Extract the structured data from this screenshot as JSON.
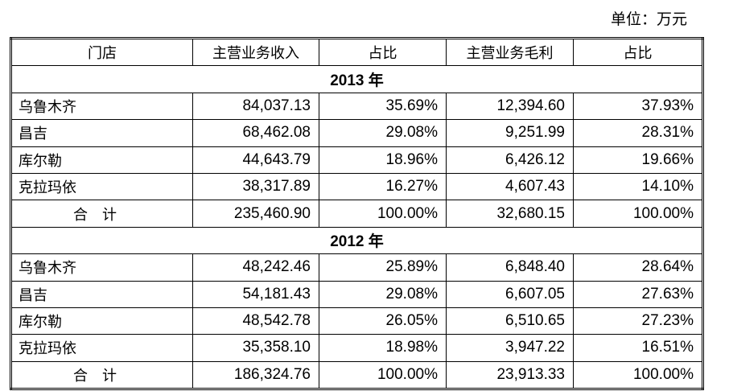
{
  "unit_label": "单位：万元",
  "headers": [
    "门店",
    "主营业务收入",
    "占比",
    "主营业务毛利",
    "占比"
  ],
  "sections": [
    {
      "year": "2013 年",
      "rows": [
        [
          "乌鲁木齐",
          "84,037.13",
          "35.69%",
          "12,394.60",
          "37.93%"
        ],
        [
          "昌吉",
          "68,462.08",
          "29.08%",
          "9,251.99",
          "28.31%"
        ],
        [
          "库尔勒",
          "44,643.79",
          "18.96%",
          "6,426.12",
          "19.66%"
        ],
        [
          "克拉玛依",
          "38,317.89",
          "16.27%",
          "4,607.43",
          "14.10%"
        ]
      ],
      "total": [
        "合计",
        "235,460.90",
        "100.00%",
        "32,680.15",
        "100.00%"
      ]
    },
    {
      "year": "2012 年",
      "rows": [
        [
          "乌鲁木齐",
          "48,242.46",
          "25.89%",
          "6,848.40",
          "28.64%"
        ],
        [
          "昌吉",
          "54,181.43",
          "29.08%",
          "6,607.05",
          "27.63%"
        ],
        [
          "库尔勒",
          "48,542.78",
          "26.05%",
          "6,510.65",
          "27.23%"
        ],
        [
          "克拉玛依",
          "35,358.10",
          "18.98%",
          "3,947.22",
          "16.51%"
        ]
      ],
      "total": [
        "合计",
        "186,324.76",
        "100.00%",
        "23,913.33",
        "100.00%"
      ]
    }
  ]
}
